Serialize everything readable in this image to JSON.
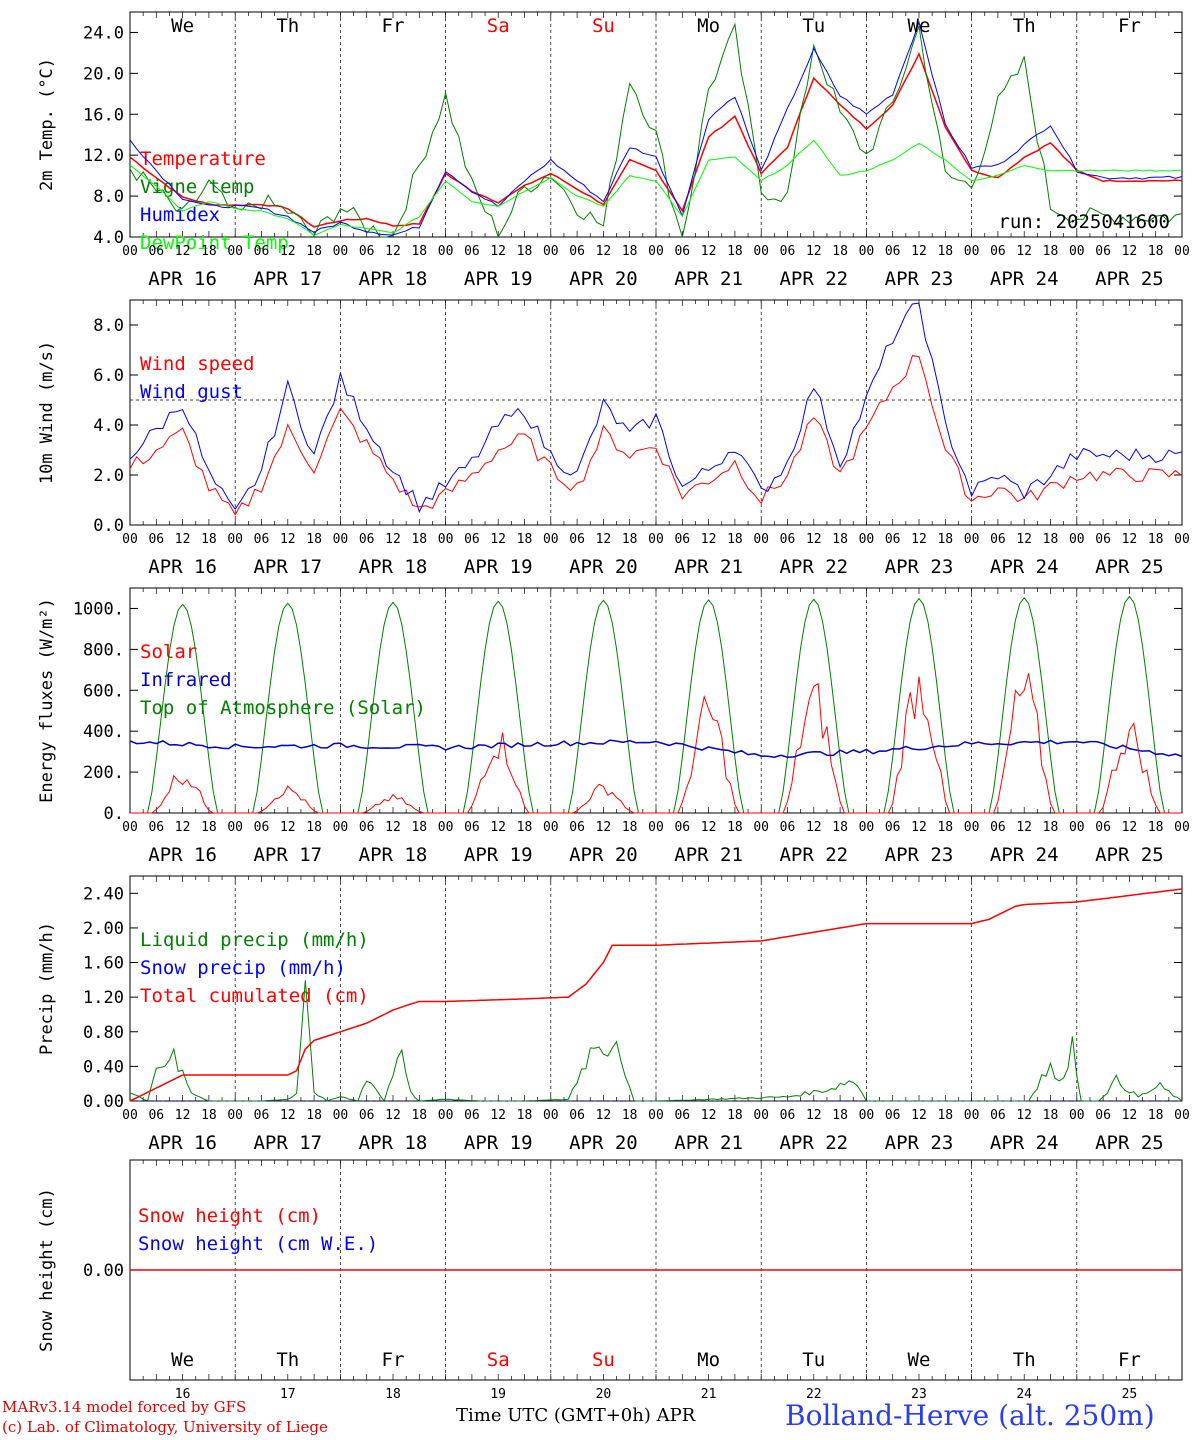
{
  "chart_data": [
    {
      "type": "line",
      "ylabel": "2m Temp. (°C)",
      "ylim": [
        4.0,
        26.0
      ],
      "yticks": [
        "4.0",
        "8.0",
        "12.0",
        "16.0",
        "20.0",
        "24.0"
      ],
      "run_label": "run: 2025041600",
      "x_hours": [
        0,
        6,
        12,
        18,
        24,
        30,
        36,
        42,
        48,
        54,
        60,
        66,
        72,
        78,
        84,
        90,
        96,
        102,
        108,
        114,
        120,
        126,
        132,
        138,
        144,
        150,
        156,
        162,
        168,
        174,
        180,
        186,
        192,
        198,
        204,
        210,
        216,
        222,
        228,
        234,
        240
      ],
      "series": [
        {
          "name": "Temperature",
          "color": "#ff0000",
          "values": [
            11.8,
            9.8,
            7.9,
            7.2,
            7.1,
            7.2,
            6.8,
            5.0,
            5.6,
            5.8,
            5.1,
            5.3,
            10.2,
            8.5,
            7.4,
            9.0,
            10.2,
            8.7,
            7.2,
            11.5,
            10.5,
            6.6,
            13.8,
            15.8,
            10.2,
            12.8,
            19.6,
            16.9,
            14.6,
            16.9,
            21.9,
            14.8,
            10.5,
            9.8,
            11.8,
            13.2,
            10.5,
            9.5,
            9.5,
            9.5,
            9.5
          ]
        },
        {
          "name": "Vigne temp",
          "color": "#008000",
          "values": [
            10.8,
            8.5,
            6.0,
            9.2,
            6.0,
            7.5,
            6.5,
            4.2,
            7.0,
            5.0,
            4.1,
            11.0,
            17.8,
            9.0,
            4.3,
            8.8,
            10.2,
            7.0,
            5.0,
            19.5,
            14.0,
            3.5,
            18.5,
            24.0,
            8.5,
            8.0,
            23.0,
            16.0,
            12.0,
            17.0,
            24.5,
            10.0,
            9.0,
            17.0,
            21.0,
            7.0,
            6.0,
            6.0,
            6.0,
            6.0,
            6.0
          ]
        },
        {
          "name": "Humidex",
          "color": "#0000ff",
          "values": [
            13.5,
            10.5,
            7.8,
            7.0,
            7.0,
            6.8,
            6.0,
            4.5,
            5.4,
            4.6,
            4.2,
            5.0,
            10.5,
            8.5,
            7.0,
            9.5,
            11.5,
            9.5,
            7.5,
            12.8,
            11.8,
            6.2,
            15.6,
            17.8,
            10.5,
            16.5,
            22.3,
            17.8,
            16.0,
            18.0,
            25.0,
            15.0,
            10.8,
            11.0,
            13.0,
            15.0,
            10.5,
            9.8,
            9.8,
            9.8,
            9.8
          ]
        },
        {
          "name": "DewPoint Temp",
          "color": "#00ff00",
          "values": [
            11.0,
            9.0,
            6.5,
            7.5,
            6.8,
            6.5,
            5.8,
            4.2,
            5.2,
            4.8,
            4.4,
            6.0,
            9.5,
            7.5,
            7.0,
            8.5,
            9.8,
            8.0,
            7.0,
            10.0,
            9.5,
            6.0,
            11.5,
            11.8,
            9.5,
            11.0,
            13.5,
            10.0,
            10.5,
            11.5,
            13.2,
            11.5,
            9.5,
            10.0,
            11.0,
            10.5,
            10.5,
            10.5,
            10.5,
            10.5,
            10.5
          ]
        }
      ]
    },
    {
      "type": "line",
      "ylabel": "10m Wind (m/s)",
      "ylim": [
        0.0,
        9.0
      ],
      "yticks": [
        "0.0",
        "2.0",
        "4.0",
        "6.0",
        "8.0"
      ],
      "reference_line": 5.0,
      "x_hours": [
        0,
        6,
        12,
        18,
        24,
        30,
        36,
        42,
        48,
        54,
        60,
        66,
        72,
        78,
        84,
        90,
        96,
        102,
        108,
        114,
        120,
        126,
        132,
        138,
        144,
        150,
        156,
        162,
        168,
        174,
        180,
        186,
        192,
        198,
        204,
        210,
        216,
        222,
        228,
        234,
        240
      ],
      "series": [
        {
          "name": "Wind speed",
          "color": "#ff0000",
          "values": [
            2.3,
            3.0,
            3.7,
            1.5,
            0.3,
            1.6,
            3.8,
            2.3,
            4.5,
            3.2,
            1.8,
            0.6,
            1.2,
            2.0,
            3.0,
            3.5,
            2.2,
            1.5,
            3.7,
            2.8,
            3.2,
            1.2,
            1.8,
            2.5,
            1.0,
            2.0,
            4.3,
            2.0,
            3.8,
            5.5,
            6.9,
            3.0,
            1.0,
            1.5,
            1.0,
            1.5,
            2.0,
            2.0,
            2.0,
            2.0,
            2.0
          ]
        },
        {
          "name": "Wind gust",
          "color": "#0000ff",
          "values": [
            2.8,
            3.8,
            4.9,
            2.0,
            0.4,
            2.2,
            5.5,
            2.8,
            5.8,
            4.0,
            2.2,
            0.8,
            1.6,
            2.5,
            4.0,
            4.6,
            2.8,
            2.0,
            4.8,
            3.6,
            4.3,
            1.5,
            2.2,
            3.2,
            1.3,
            2.5,
            5.6,
            2.5,
            5.0,
            7.5,
            8.9,
            4.0,
            1.3,
            2.0,
            1.3,
            2.0,
            2.8,
            2.8,
            2.8,
            2.8,
            2.8
          ]
        }
      ]
    },
    {
      "type": "line",
      "ylabel": "Energy fluxes (W/m²)",
      "ylim": [
        0,
        1100
      ],
      "yticks": [
        "0.",
        "200.",
        "400.",
        "600.",
        "800.",
        "1000."
      ],
      "toa_peak": [
        1020,
        1025,
        1030,
        1035,
        1040,
        1042,
        1045,
        1048,
        1052,
        1058
      ],
      "solar_peak": [
        230,
        140,
        90,
        430,
        150,
        600,
        680,
        780,
        730,
        480
      ],
      "series": [
        {
          "name": "Solar",
          "color": "#ff0000"
        },
        {
          "name": "Infrared",
          "color": "#0000cc",
          "x_hours": [
            0,
            24,
            48,
            72,
            96,
            120,
            144,
            168,
            192,
            216,
            240
          ],
          "values": [
            350,
            325,
            330,
            320,
            340,
            350,
            280,
            300,
            340,
            350,
            280
          ]
        },
        {
          "name": "Top of Atmosphere (Solar)",
          "color": "#008000"
        }
      ]
    },
    {
      "type": "line",
      "ylabel": "Precip (mm/h)",
      "ylim": [
        0.0,
        2.6
      ],
      "yticks": [
        "0.00",
        "0.40",
        "0.80",
        "1.20",
        "1.60",
        "2.00",
        "2.40"
      ],
      "series": [
        {
          "name": "Liquid precip (mm/h)",
          "color": "#008000",
          "x_hours": [
            0,
            4,
            6,
            8,
            10,
            12,
            14,
            18,
            30,
            36,
            38,
            40,
            42,
            45,
            48,
            52,
            54,
            58,
            62,
            64,
            66,
            72,
            80,
            90,
            100,
            104,
            107,
            109,
            111,
            112,
            115,
            120,
            150,
            160,
            162,
            164,
            166,
            168,
            190,
            205,
            208,
            210,
            212,
            215,
            217,
            221,
            225,
            230,
            235,
            240
          ],
          "values": [
            0.1,
            0.0,
            0.5,
            0.35,
            0.55,
            0.3,
            0.1,
            0.0,
            0.0,
            0.02,
            0.1,
            1.6,
            0.1,
            0.0,
            0.05,
            0.0,
            0.3,
            0.0,
            0.7,
            0.1,
            0.0,
            0.02,
            0.0,
            0.0,
            0.02,
            0.5,
            0.8,
            0.6,
            0.9,
            0.4,
            0.0,
            0.0,
            0.05,
            0.15,
            0.2,
            0.25,
            0.2,
            0.0,
            0.0,
            0.0,
            0.3,
            0.4,
            0.2,
            0.7,
            0.0,
            0.0,
            0.25,
            0.05,
            0.18,
            0.0
          ]
        },
        {
          "name": "Snow precip (mm/h)",
          "color": "#0000ff",
          "x_hours": [
            0,
            240
          ],
          "values": [
            0.0,
            0.0
          ]
        },
        {
          "name": "Total cumulated (cm)",
          "color": "#ff0000",
          "x_hours": [
            0,
            12,
            24,
            30,
            36,
            38,
            40,
            42,
            48,
            54,
            60,
            64,
            66,
            72,
            90,
            100,
            104,
            108,
            110,
            120,
            144,
            156,
            168,
            192,
            196,
            200,
            202,
            204,
            216,
            240
          ],
          "values": [
            0.0,
            0.3,
            0.3,
            0.3,
            0.3,
            0.35,
            0.6,
            0.7,
            0.8,
            0.9,
            1.05,
            1.12,
            1.15,
            1.15,
            1.18,
            1.2,
            1.35,
            1.6,
            1.8,
            1.8,
            1.85,
            1.95,
            2.05,
            2.05,
            2.1,
            2.2,
            2.25,
            2.27,
            2.3,
            2.45
          ]
        }
      ]
    },
    {
      "type": "line",
      "ylabel": "Snow height (cm)",
      "yticks": [
        "0.00"
      ],
      "series": [
        {
          "name": "Snow height (cm)",
          "color": "#ff0000",
          "x_hours": [
            0,
            240
          ],
          "values": [
            0,
            0
          ]
        },
        {
          "name": "Snow height (cm W.E.)",
          "color": "#0000ff"
        }
      ]
    }
  ],
  "axis": {
    "hour_ticks": [
      "00",
      "06",
      "12",
      "18"
    ],
    "end_tick": "00",
    "dates": [
      "APR 16",
      "APR 17",
      "APR 18",
      "APR 19",
      "APR 20",
      "APR 21",
      "APR 22",
      "APR 23",
      "APR 24",
      "APR 25"
    ],
    "days": [
      {
        "label": "We",
        "color": "#000000"
      },
      {
        "label": "Th",
        "color": "#000000"
      },
      {
        "label": "Fr",
        "color": "#000000"
      },
      {
        "label": "Sa",
        "color": "#ff0000"
      },
      {
        "label": "Su",
        "color": "#ff0000"
      },
      {
        "label": "Mo",
        "color": "#000000"
      },
      {
        "label": "Tu",
        "color": "#000000"
      },
      {
        "label": "We",
        "color": "#000000"
      },
      {
        "label": "Th",
        "color": "#000000"
      },
      {
        "label": "Fr",
        "color": "#000000"
      }
    ],
    "day_numbers": [
      "16",
      "17",
      "18",
      "19",
      "20",
      "21",
      "22",
      "23",
      "24",
      "25"
    ],
    "time_label": "Time UTC (GMT+0h) APR"
  },
  "footer": {
    "credit_line1": "MARv3.14 model forced by GFS",
    "credit_line2": "(c) Lab. of Climatology, University of Liege",
    "station": "Bolland-Herve (alt. 250m)"
  }
}
